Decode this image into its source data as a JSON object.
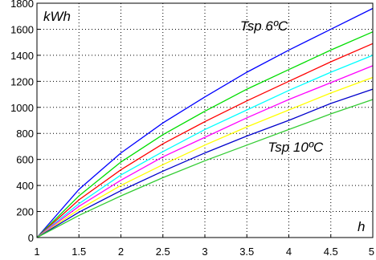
{
  "chart_data": {
    "type": "line",
    "title": "",
    "xlabel": "h",
    "ylabel": "kWh",
    "xlim": [
      1,
      5
    ],
    "ylim": [
      0,
      1800
    ],
    "grid": true,
    "x_ticks": [
      "1",
      "1.5",
      "2",
      "2.5",
      "3",
      "3.5",
      "4",
      "4.5",
      "5"
    ],
    "y_ticks": [
      "0",
      "200",
      "400",
      "600",
      "800",
      "1000",
      "1200",
      "1400",
      "1600",
      "1800"
    ],
    "x": [
      1,
      1.5,
      2,
      2.5,
      3,
      3.5,
      4,
      4.5,
      5
    ],
    "series": [
      {
        "color": "#0000ff",
        "values": [
          0,
          370,
          650,
          880,
          1080,
          1270,
          1440,
          1600,
          1760
        ]
      },
      {
        "color": "#00dd00",
        "values": [
          0,
          320,
          580,
          790,
          970,
          1140,
          1290,
          1440,
          1580
        ]
      },
      {
        "color": "#ff0000",
        "values": [
          0,
          290,
          520,
          720,
          890,
          1050,
          1200,
          1350,
          1490
        ]
      },
      {
        "color": "#00ffff",
        "values": [
          0,
          260,
          480,
          660,
          830,
          980,
          1130,
          1270,
          1400
        ]
      },
      {
        "color": "#ff00ff",
        "values": [
          0,
          240,
          440,
          620,
          770,
          920,
          1060,
          1190,
          1320
        ]
      },
      {
        "color": "#ffff00",
        "values": [
          0,
          215,
          400,
          560,
          710,
          850,
          980,
          1110,
          1230
        ]
      },
      {
        "color": "#0000cc",
        "values": [
          0,
          195,
          360,
          510,
          650,
          780,
          900,
          1030,
          1140
        ]
      },
      {
        "color": "#33cc33",
        "values": [
          0,
          170,
          320,
          460,
          590,
          710,
          830,
          950,
          1060
        ]
      }
    ],
    "annotations": [
      {
        "text": "Tsp 6ºC",
        "x": 3.42,
        "y": 1590
      },
      {
        "text": "Tsp 10ºC",
        "x": 3.75,
        "y": 660
      }
    ]
  }
}
